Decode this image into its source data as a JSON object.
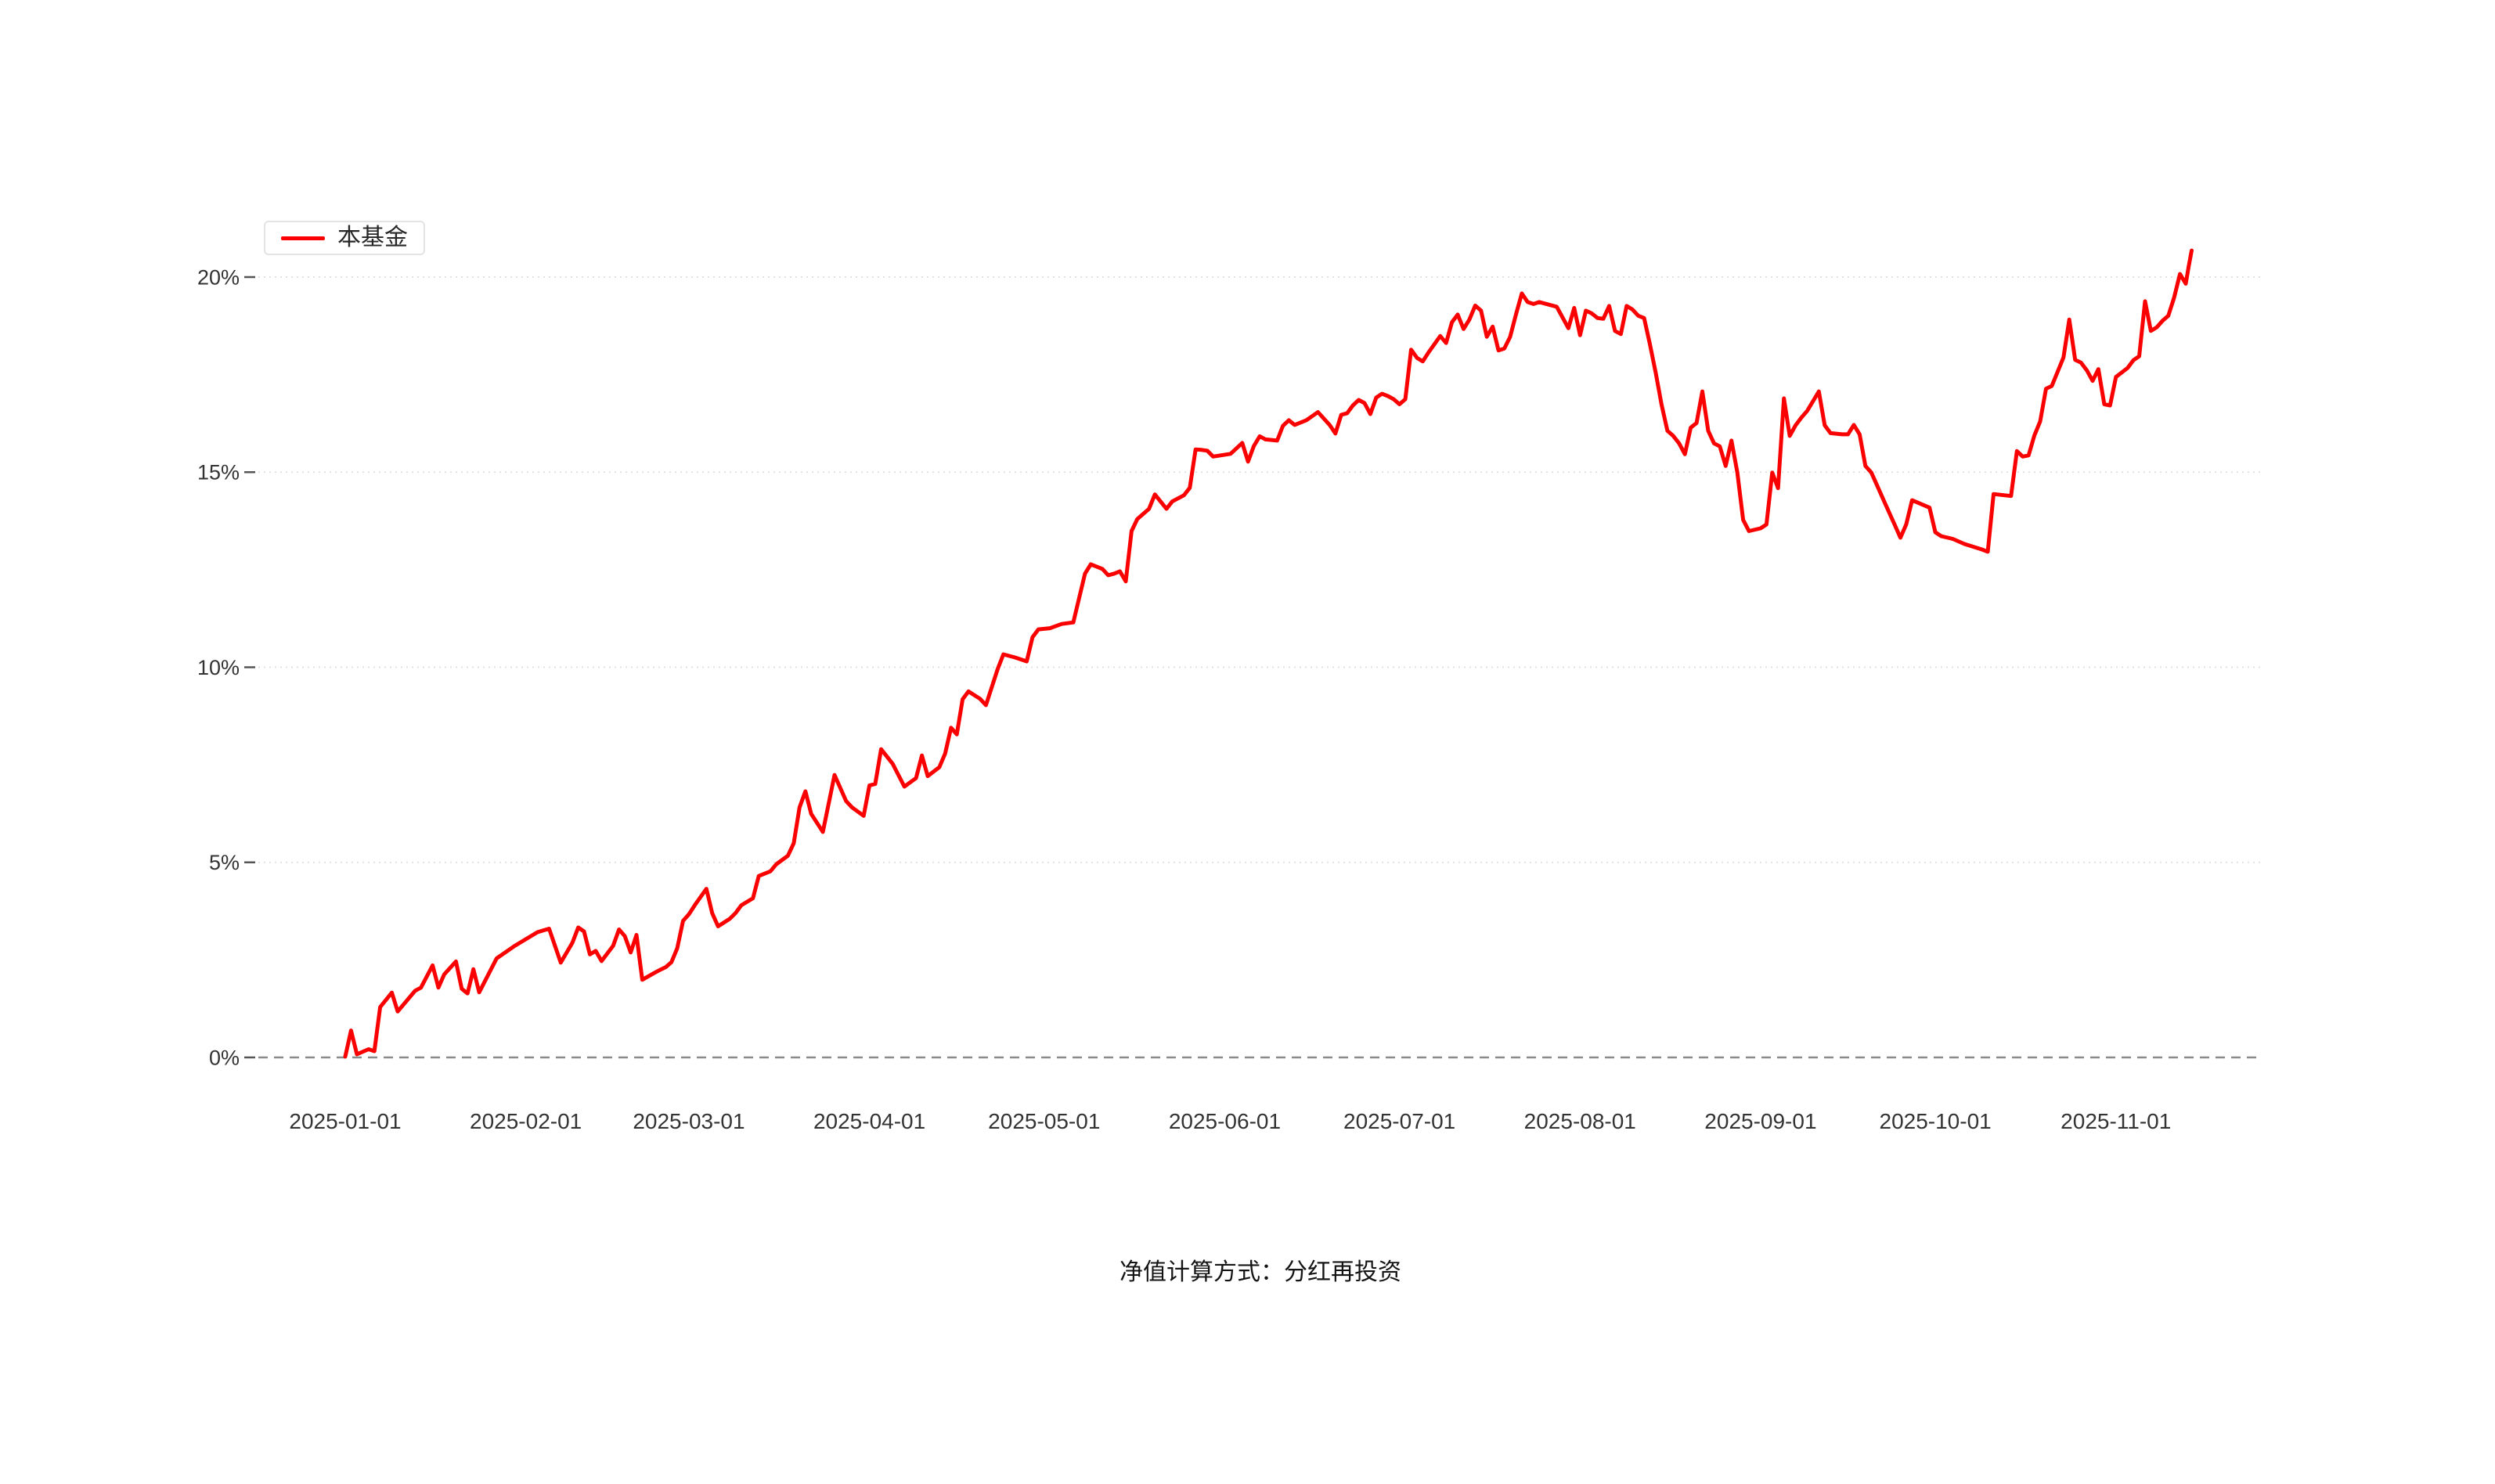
{
  "page": {
    "background": "#ffffff"
  },
  "legend": {
    "items": [
      {
        "label": "本基金",
        "color": "#fa0000"
      }
    ]
  },
  "footnote": "净值计算方式：分红再投资",
  "colors": {
    "line": "#fa0000",
    "grid_dotted": "#dedede",
    "zero_line_dashed": "#8a8a8a",
    "axis_tick": "#555555",
    "axis_label": "#333333"
  },
  "chart_data": {
    "type": "line",
    "title": "",
    "legend_position": "top-left",
    "grid": "horizontal dotted lines; 0% baseline dashed",
    "x_axis": {
      "start_date": "2025-01-01",
      "tick_labels": [
        "2025-01-01",
        "2025-02-01",
        "2025-03-01",
        "2025-04-01",
        "2025-05-01",
        "2025-06-01",
        "2025-07-01",
        "2025-08-01",
        "2025-09-01",
        "2025-10-01",
        "2025-11-01"
      ],
      "tick_day_offsets": [
        0,
        31,
        59,
        90,
        120,
        151,
        181,
        212,
        243,
        273,
        304
      ]
    },
    "y_axis": {
      "unit": "%",
      "tick_values": [
        0,
        5,
        10,
        15,
        20
      ],
      "tick_labels": [
        "0%",
        "5%",
        "10%",
        "15%",
        "20%"
      ],
      "ylim": [
        0,
        20.8
      ]
    },
    "series": [
      {
        "name": "本基金",
        "color": "#fa0000",
        "points_day_value": [
          [
            0,
            0.02
          ],
          [
            1,
            0.69
          ],
          [
            2,
            0.08
          ],
          [
            4,
            0.21
          ],
          [
            5,
            0.16
          ],
          [
            6,
            1.29
          ],
          [
            8,
            1.66
          ],
          [
            9,
            1.18
          ],
          [
            12,
            1.71
          ],
          [
            13,
            1.79
          ],
          [
            15,
            2.36
          ],
          [
            16,
            1.79
          ],
          [
            17,
            2.13
          ],
          [
            19,
            2.46
          ],
          [
            20,
            1.76
          ],
          [
            21,
            1.64
          ],
          [
            22,
            2.26
          ],
          [
            23,
            1.67
          ],
          [
            26,
            2.54
          ],
          [
            29,
            2.85
          ],
          [
            33,
            3.21
          ],
          [
            35,
            3.3
          ],
          [
            37,
            2.43
          ],
          [
            39,
            2.94
          ],
          [
            40,
            3.33
          ],
          [
            41,
            3.23
          ],
          [
            42,
            2.64
          ],
          [
            43,
            2.73
          ],
          [
            44,
            2.47
          ],
          [
            46,
            2.86
          ],
          [
            47,
            3.28
          ],
          [
            48,
            3.11
          ],
          [
            49,
            2.69
          ],
          [
            50,
            3.14
          ],
          [
            51,
            1.99
          ],
          [
            53,
            2.16
          ],
          [
            54,
            2.24
          ],
          [
            55,
            2.31
          ],
          [
            56,
            2.44
          ],
          [
            57,
            2.8
          ],
          [
            58,
            3.5
          ],
          [
            59,
            3.67
          ],
          [
            60,
            3.9
          ],
          [
            62,
            4.32
          ],
          [
            63,
            3.7
          ],
          [
            64,
            3.36
          ],
          [
            66,
            3.55
          ],
          [
            67,
            3.7
          ],
          [
            68,
            3.9
          ],
          [
            70,
            4.08
          ],
          [
            71,
            4.65
          ],
          [
            73,
            4.77
          ],
          [
            74,
            4.95
          ],
          [
            76,
            5.17
          ],
          [
            77,
            5.49
          ],
          [
            78,
            6.41
          ],
          [
            79,
            6.82
          ],
          [
            80,
            6.24
          ],
          [
            82,
            5.78
          ],
          [
            84,
            7.24
          ],
          [
            86,
            6.57
          ],
          [
            87,
            6.41
          ],
          [
            89,
            6.19
          ],
          [
            90,
            6.97
          ],
          [
            91,
            7.01
          ],
          [
            92,
            7.9
          ],
          [
            94,
            7.52
          ],
          [
            96,
            6.94
          ],
          [
            98,
            7.16
          ],
          [
            99,
            7.74
          ],
          [
            100,
            7.21
          ],
          [
            102,
            7.44
          ],
          [
            103,
            7.79
          ],
          [
            104,
            8.45
          ],
          [
            105,
            8.28
          ],
          [
            106,
            9.18
          ],
          [
            107,
            9.38
          ],
          [
            109,
            9.19
          ],
          [
            110,
            9.03
          ],
          [
            112,
            9.95
          ],
          [
            113,
            10.33
          ],
          [
            115,
            10.25
          ],
          [
            117,
            10.15
          ],
          [
            118,
            10.77
          ],
          [
            119,
            10.97
          ],
          [
            121,
            11.0
          ],
          [
            123,
            11.11
          ],
          [
            125,
            11.15
          ],
          [
            127,
            12.4
          ],
          [
            128,
            12.64
          ],
          [
            130,
            12.52
          ],
          [
            131,
            12.36
          ],
          [
            132,
            12.4
          ],
          [
            133,
            12.46
          ],
          [
            134,
            12.2
          ],
          [
            135,
            13.49
          ],
          [
            136,
            13.8
          ],
          [
            138,
            14.06
          ],
          [
            139,
            14.43
          ],
          [
            141,
            14.06
          ],
          [
            142,
            14.25
          ],
          [
            144,
            14.41
          ],
          [
            145,
            14.6
          ],
          [
            146,
            15.58
          ],
          [
            147,
            15.57
          ],
          [
            148,
            15.55
          ],
          [
            149,
            15.4
          ],
          [
            152,
            15.47
          ],
          [
            154,
            15.75
          ],
          [
            155,
            15.27
          ],
          [
            156,
            15.67
          ],
          [
            157,
            15.92
          ],
          [
            158,
            15.84
          ],
          [
            160,
            15.81
          ],
          [
            161,
            16.19
          ],
          [
            162,
            16.33
          ],
          [
            163,
            16.21
          ],
          [
            165,
            16.33
          ],
          [
            167,
            16.54
          ],
          [
            169,
            16.21
          ],
          [
            170,
            15.99
          ],
          [
            171,
            16.47
          ],
          [
            172,
            16.51
          ],
          [
            173,
            16.71
          ],
          [
            174,
            16.85
          ],
          [
            175,
            16.77
          ],
          [
            176,
            16.49
          ],
          [
            177,
            16.91
          ],
          [
            178,
            17.01
          ],
          [
            179,
            16.95
          ],
          [
            180,
            16.87
          ],
          [
            181,
            16.74
          ],
          [
            182,
            16.87
          ],
          [
            183,
            18.14
          ],
          [
            184,
            17.93
          ],
          [
            185,
            17.84
          ],
          [
            186,
            18.07
          ],
          [
            188,
            18.49
          ],
          [
            189,
            18.31
          ],
          [
            190,
            18.84
          ],
          [
            191,
            19.04
          ],
          [
            192,
            18.67
          ],
          [
            193,
            18.91
          ],
          [
            194,
            19.27
          ],
          [
            195,
            19.14
          ],
          [
            196,
            18.47
          ],
          [
            197,
            18.73
          ],
          [
            198,
            18.12
          ],
          [
            199,
            18.17
          ],
          [
            200,
            18.47
          ],
          [
            201,
            19.04
          ],
          [
            202,
            19.58
          ],
          [
            203,
            19.36
          ],
          [
            204,
            19.31
          ],
          [
            205,
            19.36
          ],
          [
            208,
            19.24
          ],
          [
            210,
            18.69
          ],
          [
            211,
            19.21
          ],
          [
            212,
            18.51
          ],
          [
            213,
            19.14
          ],
          [
            214,
            19.07
          ],
          [
            215,
            18.95
          ],
          [
            216,
            18.93
          ],
          [
            217,
            19.26
          ],
          [
            218,
            18.62
          ],
          [
            219,
            18.54
          ],
          [
            220,
            19.26
          ],
          [
            221,
            19.17
          ],
          [
            222,
            19.01
          ],
          [
            223,
            18.95
          ],
          [
            224,
            18.27
          ],
          [
            225,
            17.54
          ],
          [
            226,
            16.73
          ],
          [
            227,
            16.06
          ],
          [
            228,
            15.93
          ],
          [
            229,
            15.74
          ],
          [
            230,
            15.46
          ],
          [
            231,
            16.14
          ],
          [
            232,
            16.26
          ],
          [
            233,
            17.07
          ],
          [
            234,
            16.06
          ],
          [
            235,
            15.74
          ],
          [
            236,
            15.66
          ],
          [
            237,
            15.16
          ],
          [
            238,
            15.81
          ],
          [
            239,
            14.99
          ],
          [
            240,
            13.78
          ],
          [
            241,
            13.49
          ],
          [
            243,
            13.56
          ],
          [
            244,
            13.66
          ],
          [
            245,
            14.99
          ],
          [
            246,
            14.59
          ],
          [
            247,
            16.89
          ],
          [
            248,
            15.93
          ],
          [
            249,
            16.2
          ],
          [
            250,
            16.4
          ],
          [
            251,
            16.57
          ],
          [
            253,
            17.07
          ],
          [
            254,
            16.2
          ],
          [
            255,
            16.0
          ],
          [
            257,
            15.97
          ],
          [
            258,
            15.97
          ],
          [
            259,
            16.21
          ],
          [
            260,
            15.97
          ],
          [
            261,
            15.16
          ],
          [
            262,
            14.99
          ],
          [
            263,
            14.66
          ],
          [
            264,
            14.32
          ],
          [
            265,
            13.99
          ],
          [
            266,
            13.66
          ],
          [
            267,
            13.32
          ],
          [
            268,
            13.66
          ],
          [
            269,
            14.28
          ],
          [
            272,
            14.09
          ],
          [
            273,
            13.46
          ],
          [
            274,
            13.36
          ],
          [
            276,
            13.29
          ],
          [
            278,
            13.16
          ],
          [
            281,
            13.02
          ],
          [
            282,
            12.96
          ],
          [
            283,
            14.44
          ],
          [
            286,
            14.39
          ],
          [
            287,
            15.54
          ],
          [
            288,
            15.4
          ],
          [
            289,
            15.43
          ],
          [
            290,
            15.94
          ],
          [
            291,
            16.3
          ],
          [
            292,
            17.14
          ],
          [
            293,
            17.21
          ],
          [
            295,
            17.94
          ],
          [
            296,
            18.91
          ],
          [
            297,
            17.88
          ],
          [
            298,
            17.81
          ],
          [
            299,
            17.61
          ],
          [
            300,
            17.34
          ],
          [
            301,
            17.64
          ],
          [
            302,
            16.74
          ],
          [
            303,
            16.71
          ],
          [
            304,
            17.44
          ],
          [
            306,
            17.67
          ],
          [
            307,
            17.87
          ],
          [
            308,
            17.97
          ],
          [
            309,
            19.38
          ],
          [
            310,
            18.62
          ],
          [
            311,
            18.71
          ],
          [
            312,
            18.88
          ],
          [
            313,
            19.01
          ],
          [
            314,
            19.48
          ],
          [
            315,
            20.08
          ],
          [
            316,
            19.83
          ],
          [
            316.5,
            20.28
          ],
          [
            317,
            20.68
          ]
        ]
      }
    ]
  }
}
